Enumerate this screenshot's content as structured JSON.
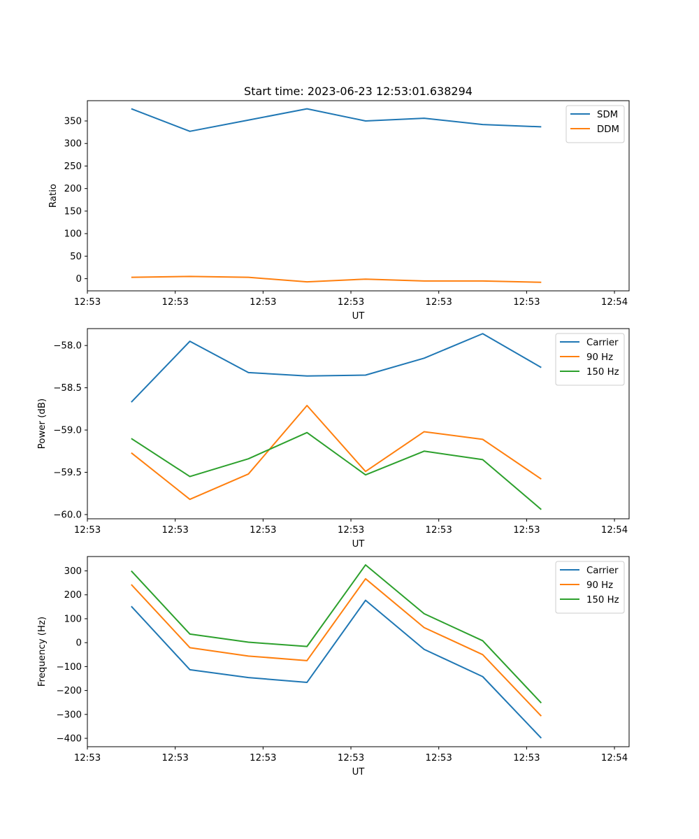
{
  "figure": {
    "title": "Start time: 2023-06-23 12:53:01.638294"
  },
  "chart_data": [
    {
      "type": "line",
      "ylabel": "Ratio",
      "xlabel": "UT",
      "xlim": [
        -0.75,
        8.5
      ],
      "ylim": [
        -27,
        395
      ],
      "x": [
        0,
        1,
        2,
        3,
        4,
        5,
        6,
        7
      ],
      "xticks": [
        -0.75,
        0.75,
        2.25,
        3.75,
        5.25,
        6.75,
        8.25
      ],
      "xtick_labels": [
        "12:53",
        "12:53",
        "12:53",
        "12:53",
        "12:53",
        "12:53",
        "12:54"
      ],
      "yticks": [
        0,
        50,
        100,
        150,
        200,
        250,
        300,
        350
      ],
      "ytick_labels": [
        "0",
        "50",
        "100",
        "150",
        "200",
        "250",
        "300",
        "350"
      ],
      "legend_position": "upper right",
      "series": [
        {
          "name": "SDM",
          "color": "#1f77b4",
          "values": [
            377,
            327,
            352,
            377,
            350,
            356,
            342,
            337
          ]
        },
        {
          "name": "DDM",
          "color": "#ff7f0e",
          "values": [
            3,
            5,
            3,
            -7,
            -1,
            -5,
            -5,
            -8
          ]
        }
      ]
    },
    {
      "type": "line",
      "ylabel": "Power (dB)",
      "xlabel": "UT",
      "xlim": [
        -0.75,
        8.5
      ],
      "ylim": [
        -60.05,
        -57.8
      ],
      "x": [
        0,
        1,
        2,
        3,
        4,
        5,
        6,
        7
      ],
      "xticks": [
        -0.75,
        0.75,
        2.25,
        3.75,
        5.25,
        6.75,
        8.25
      ],
      "xtick_labels": [
        "12:53",
        "12:53",
        "12:53",
        "12:53",
        "12:53",
        "12:53",
        "12:54"
      ],
      "yticks": [
        -58.0,
        -58.5,
        -59.0,
        -59.5,
        -60.0
      ],
      "ytick_labels": [
        "−58.0",
        "−58.5",
        "−59.0",
        "−59.5",
        "−60.0"
      ],
      "legend_position": "upper right",
      "series": [
        {
          "name": "Carrier",
          "color": "#1f77b4",
          "values": [
            -58.67,
            -57.95,
            -58.32,
            -58.36,
            -58.35,
            -58.15,
            -57.86,
            -58.26
          ]
        },
        {
          "name": "90 Hz",
          "color": "#ff7f0e",
          "values": [
            -59.27,
            -59.82,
            -59.52,
            -58.71,
            -59.49,
            -59.02,
            -59.11,
            -59.58
          ]
        },
        {
          "name": "150 Hz",
          "color": "#2ca02c",
          "values": [
            -59.1,
            -59.55,
            -59.34,
            -59.03,
            -59.53,
            -59.25,
            -59.35,
            -59.94
          ]
        }
      ]
    },
    {
      "type": "line",
      "ylabel": "Frequency (Hz)",
      "xlabel": "UT",
      "xlim": [
        -0.75,
        8.5
      ],
      "ylim": [
        -435,
        360
      ],
      "x": [
        0,
        1,
        2,
        3,
        4,
        5,
        6,
        7
      ],
      "xticks": [
        -0.75,
        0.75,
        2.25,
        3.75,
        5.25,
        6.75,
        8.25
      ],
      "xtick_labels": [
        "12:53",
        "12:53",
        "12:53",
        "12:53",
        "12:53",
        "12:53",
        "12:54"
      ],
      "yticks": [
        300,
        200,
        100,
        0,
        -100,
        -200,
        -300,
        -400
      ],
      "ytick_labels": [
        "300",
        "200",
        "100",
        "0",
        "−100",
        "−200",
        "−300",
        "−400"
      ],
      "legend_position": "upper right",
      "series": [
        {
          "name": "Carrier",
          "color": "#1f77b4",
          "values": [
            152,
            -113,
            -146,
            -166,
            177,
            -28,
            -142,
            -399
          ]
        },
        {
          "name": "90 Hz",
          "color": "#ff7f0e",
          "values": [
            243,
            -21,
            -56,
            -75,
            267,
            63,
            -50,
            -307
          ]
        },
        {
          "name": "150 Hz",
          "color": "#2ca02c",
          "values": [
            300,
            36,
            2,
            -16,
            325,
            121,
            8,
            -252
          ]
        }
      ]
    }
  ]
}
